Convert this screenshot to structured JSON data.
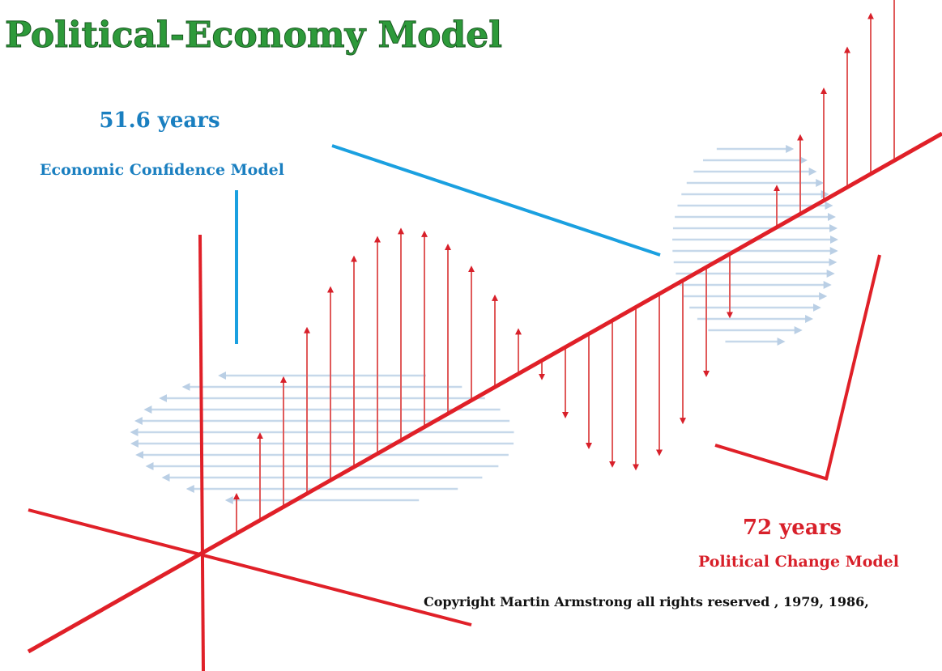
{
  "title": "Political-Economy Model",
  "left_label": {
    "period": "51.6 years",
    "name": "Economic Confidence Model"
  },
  "right_label": {
    "period": "72 years",
    "name": "Political Change Model"
  },
  "copyright": "Copyright Martin Armstrong all rights reserved , 1979, 1986,"
}
